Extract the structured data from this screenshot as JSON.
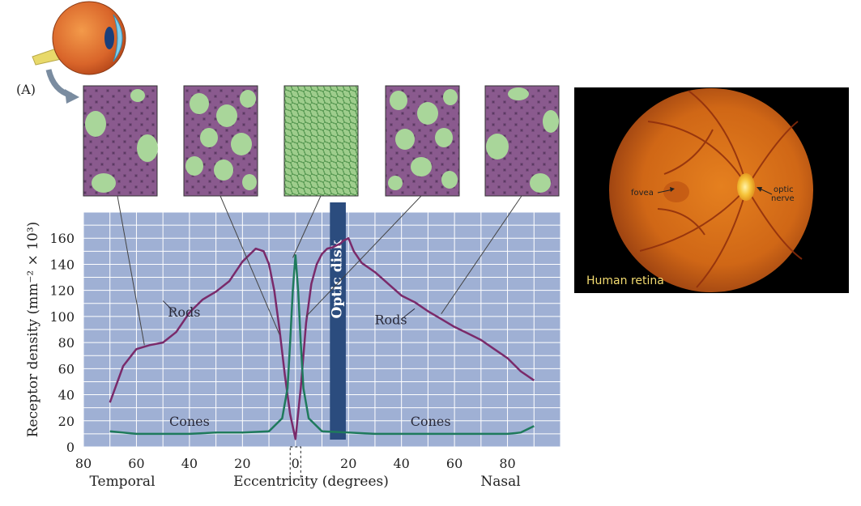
{
  "panel_label": "(A)",
  "retina_photo": {
    "caption": "Human retina",
    "fovea_label": "fovea",
    "optic_label": "optic",
    "nerve_label": "nerve"
  },
  "colors": {
    "plot_bg": "#9fb0d4",
    "grid": "#ffffff",
    "rods": "#7a2a6a",
    "cones": "#1f7a5c",
    "optic_disk": "#2b4c7e",
    "photo_bg": "#000000",
    "retina_orange": "#d96a18",
    "caption": "#f4dc70"
  },
  "chart_data": {
    "type": "line",
    "title": "",
    "xlabel": "Eccentricity (degrees)",
    "ylabel": "Receptor density (mm⁻² × 10³)",
    "x_tick_labels": [
      "80",
      "60",
      "40",
      "20",
      "0",
      "20",
      "40",
      "60",
      "80"
    ],
    "y_tick_labels": [
      "0",
      "20",
      "40",
      "60",
      "80",
      "100",
      "120",
      "140",
      "160"
    ],
    "xlim": [
      -80,
      100
    ],
    "ylim": [
      0,
      180
    ],
    "side_labels": {
      "left": "Temporal",
      "right": "Nasal"
    },
    "optic_disk": {
      "label": "Optic disk",
      "x_range": [
        13,
        19
      ]
    },
    "grid": true,
    "series": [
      {
        "name": "Rods",
        "labels": [
          "Rods",
          "Rods"
        ],
        "x": [
          -70,
          -65,
          -60,
          -55,
          -50,
          -45,
          -40,
          -35,
          -30,
          -25,
          -20,
          -15,
          -12,
          -10,
          -8,
          -6,
          -4,
          -2,
          0,
          2,
          4,
          6,
          8,
          10,
          12,
          14,
          17,
          18,
          20,
          22,
          25,
          30,
          35,
          40,
          45,
          50,
          55,
          60,
          65,
          70,
          75,
          80,
          85,
          90
        ],
        "y": [
          34,
          62,
          75,
          78,
          80,
          88,
          103,
          113,
          119,
          127,
          142,
          152,
          150,
          140,
          120,
          90,
          55,
          25,
          6,
          45,
          95,
          125,
          140,
          148,
          152,
          153,
          156,
          158,
          160,
          150,
          141,
          134,
          125,
          116,
          111,
          104,
          98,
          92,
          87,
          82,
          75,
          68,
          58,
          51
        ]
      },
      {
        "name": "Cones",
        "labels": [
          "Cones",
          "Cones"
        ],
        "x": [
          -70,
          -60,
          -50,
          -40,
          -30,
          -20,
          -10,
          -5,
          -3,
          -2,
          -1,
          0,
          1,
          2,
          3,
          5,
          10,
          20,
          30,
          40,
          50,
          60,
          70,
          80,
          85,
          90
        ],
        "y": [
          12,
          10,
          10,
          10,
          11,
          11,
          12,
          22,
          45,
          80,
          120,
          147,
          120,
          80,
          45,
          22,
          12,
          11,
          10,
          10,
          10,
          10,
          10,
          10,
          11,
          16
        ]
      }
    ]
  }
}
